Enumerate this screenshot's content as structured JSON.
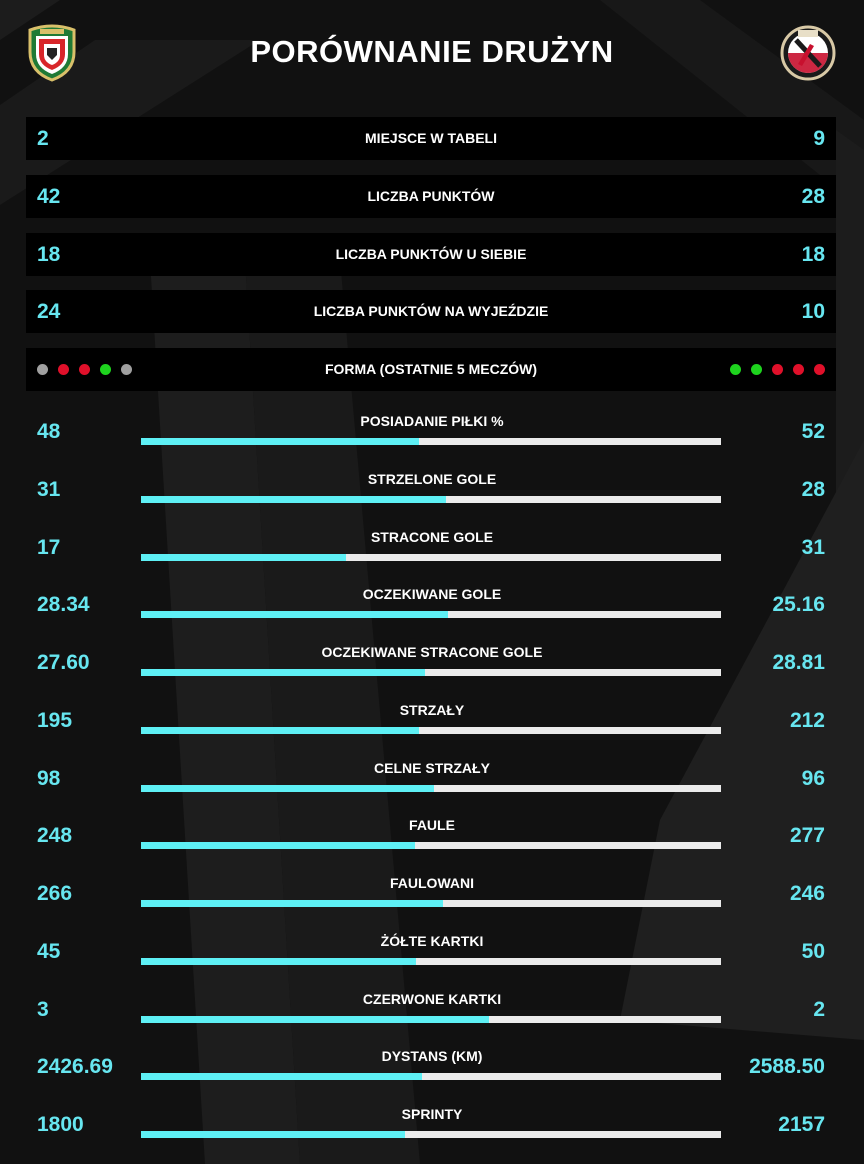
{
  "header": {
    "title": "PORÓWNANIE DRUŻYN",
    "left_team_crest_icon": "wks-slask-crest-icon",
    "right_team_crest_icon": "widzew-1910-crest-icon"
  },
  "colors": {
    "background": "#111111",
    "row_box": "#000000",
    "value_text": "#67e6f0",
    "bar_left": "#5ef0f5",
    "bar_right": "#ebebeb",
    "form_win": "#1ed41e",
    "form_loss": "#e0102a",
    "form_draw": "#a0a0a0"
  },
  "box_rows": [
    {
      "label": "MIEJSCE W TABELI",
      "left": "2",
      "right": "9"
    },
    {
      "label": "LICZBA PUNKTÓW",
      "left": "42",
      "right": "28"
    },
    {
      "label": "LICZBA PUNKTÓW U SIEBIE",
      "left": "18",
      "right": "18"
    },
    {
      "label": "LICZBA PUNKTÓW NA WYJEŹDZIE",
      "left": "24",
      "right": "10"
    }
  ],
  "form": {
    "label": "FORMA (OSTATNIE 5 MECZÓW)",
    "left": [
      "draw",
      "loss",
      "loss",
      "win",
      "draw"
    ],
    "right": [
      "win",
      "win",
      "loss",
      "loss",
      "loss"
    ]
  },
  "stats": [
    {
      "label": "POSIADANIE PIŁKI %",
      "left": "48",
      "right": "52",
      "share": 0.48
    },
    {
      "label": "STRZELONE GOLE",
      "left": "31",
      "right": "28",
      "share": 0.525
    },
    {
      "label": "STRACONE GOLE",
      "left": "17",
      "right": "31",
      "share": 0.354
    },
    {
      "label": "OCZEKIWANE GOLE",
      "left": "28.34",
      "right": "25.16",
      "share": 0.53
    },
    {
      "label": "OCZEKIWANE STRACONE GOLE",
      "left": "27.60",
      "right": "28.81",
      "share": 0.489
    },
    {
      "label": "STRZAŁY",
      "left": "195",
      "right": "212",
      "share": 0.479
    },
    {
      "label": "CELNE STRZAŁY",
      "left": "98",
      "right": "96",
      "share": 0.505
    },
    {
      "label": "FAULE",
      "left": "248",
      "right": "277",
      "share": 0.472
    },
    {
      "label": "FAULOWANI",
      "left": "266",
      "right": "246",
      "share": 0.52
    },
    {
      "label": "ŻÓŁTE KARTKI",
      "left": "45",
      "right": "50",
      "share": 0.474
    },
    {
      "label": "CZERWONE KARTKI",
      "left": "3",
      "right": "2",
      "share": 0.6
    },
    {
      "label": "DYSTANS (KM)",
      "left": "2426.69",
      "right": "2588.50",
      "share": 0.484
    },
    {
      "label": "SPRINTY",
      "left": "1800",
      "right": "2157",
      "share": 0.455
    }
  ]
}
